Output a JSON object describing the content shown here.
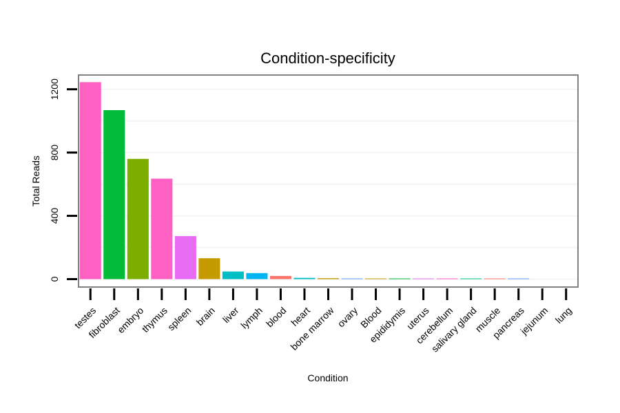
{
  "chart_data": {
    "type": "bar",
    "title": "Condition-specificity",
    "xlabel": "Condition",
    "ylabel": "Total Reads",
    "ylim": [
      -50,
      1290
    ],
    "yticks": [
      0,
      400,
      800,
      1200
    ],
    "categories": [
      "testes",
      "fibroblast",
      "embryo",
      "thymus",
      "spleen",
      "brain",
      "liver",
      "lymph",
      "blood",
      "heart",
      "bone marrow",
      "ovary",
      "Blood",
      "epididymis",
      "uterus",
      "cerebellum",
      "salivary gland",
      "muscle",
      "pancreas",
      "jejunum",
      "lung"
    ],
    "values": [
      1245,
      1068,
      760,
      635,
      272,
      132,
      48,
      38,
      20,
      8,
      6,
      4,
      4,
      2,
      1,
      1,
      1,
      1,
      1,
      0,
      0
    ],
    "colors": [
      "#FF61C3",
      "#00BA38",
      "#7CAE00",
      "#FF61C3",
      "#E76BF3",
      "#C49A00",
      "#00BFC4",
      "#00B4F0",
      "#F8766D",
      "#00BFC4",
      "#C49A00",
      "#619CFF",
      "#C49A00",
      "#00BA38",
      "#E76BF3",
      "#FF61C3",
      "#00C08B",
      "#F8766D",
      "#619CFF",
      "#7CAE00",
      "#00A9FF"
    ],
    "grid": true,
    "legend": "none"
  }
}
